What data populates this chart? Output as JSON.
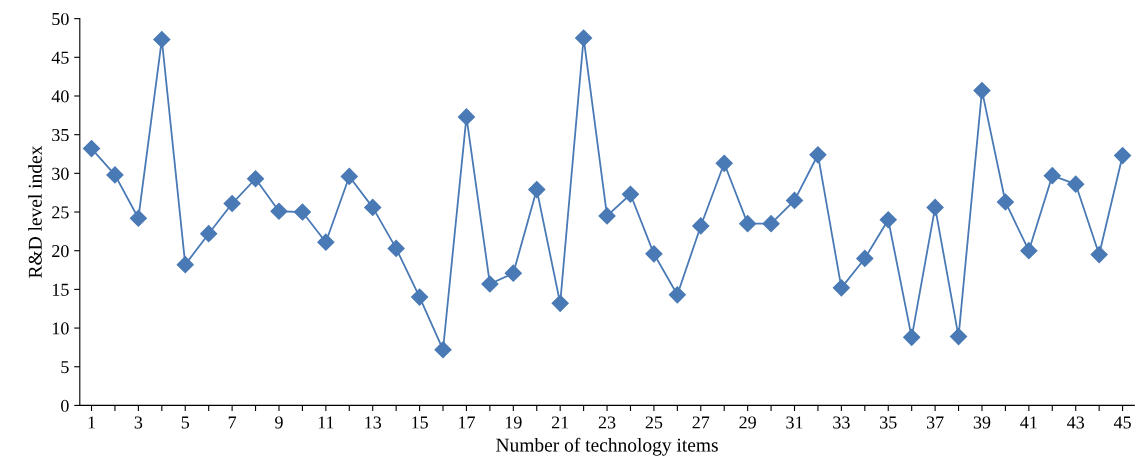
{
  "chart_data": {
    "type": "line",
    "xlabel": "Number of technology items",
    "ylabel": "R&D level index",
    "categories": [
      "1",
      null,
      "3",
      null,
      "5",
      null,
      "7",
      null,
      "9",
      null,
      "11",
      null,
      "13",
      null,
      "15",
      null,
      "17",
      null,
      "19",
      null,
      "21",
      null,
      "23",
      null,
      "25",
      null,
      "27",
      null,
      "29",
      null,
      "31",
      null,
      "33",
      null,
      "35",
      null,
      "37",
      null,
      "39",
      null,
      "41",
      null,
      "43",
      null,
      "45"
    ],
    "series": [
      {
        "color": "#4a7ab5",
        "values": [
          33.2,
          29.8,
          24.2,
          47.3,
          18.2,
          22.2,
          26.1,
          29.3,
          25.1,
          25.0,
          21.1,
          29.6,
          25.6,
          20.3,
          14.0,
          7.2,
          37.3,
          15.7,
          17.1,
          27.9,
          13.2,
          47.5,
          24.5,
          27.3,
          19.6,
          14.3,
          23.2,
          31.3,
          23.5,
          23.5,
          26.5,
          32.4,
          15.2,
          19.0,
          24.0,
          8.8,
          25.6,
          8.9,
          40.7,
          26.3,
          20.0,
          29.7,
          28.6,
          19.5,
          32.3
        ]
      }
    ],
    "ylim": [
      0,
      50
    ],
    "yticks": [
      0,
      5,
      10,
      15,
      20,
      25,
      30,
      35,
      40,
      45,
      50
    ],
    "marker": "diamond",
    "line_style": "solid",
    "grid": false,
    "legend": false
  }
}
